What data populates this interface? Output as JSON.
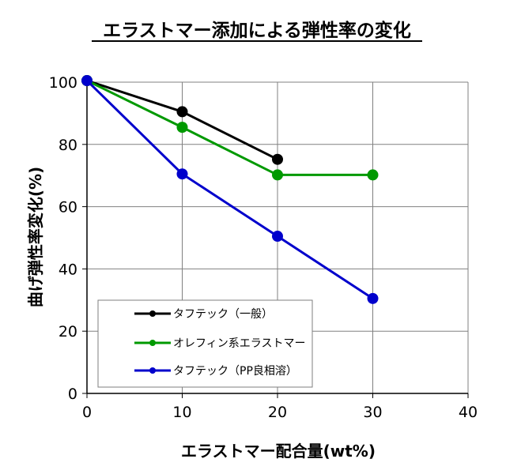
{
  "chart_data": {
    "type": "line",
    "title": "エラストマー添加による弾性率の変化",
    "xlabel": "エラストマー配合量(wt%)",
    "ylabel": "曲げ弾性率変化(%)",
    "xlim": [
      0,
      40
    ],
    "ylim": [
      0,
      100
    ],
    "x_ticks": [
      "0",
      "10",
      "20",
      "30",
      "40"
    ],
    "y_ticks": [
      "0",
      "20",
      "40",
      "60",
      "80",
      "100"
    ],
    "grid": true,
    "legend_position": "bottom-left",
    "series": [
      {
        "name": "タフテック（一般）",
        "color": "#000000",
        "points": [
          [
            0,
            100.5
          ],
          [
            10,
            90.5
          ],
          [
            20,
            75.2
          ]
        ]
      },
      {
        "name": "オレフィン系エラストマー",
        "color": "#009900",
        "points": [
          [
            0,
            100.5
          ],
          [
            10,
            85.5
          ],
          [
            20,
            70.2
          ],
          [
            30,
            70.2
          ]
        ]
      },
      {
        "name": "タフテック（PP良相溶）",
        "color": "#0000CC",
        "points": [
          [
            0,
            100.5
          ],
          [
            10,
            70.5
          ],
          [
            20,
            50.5
          ],
          [
            30,
            30.5
          ]
        ]
      }
    ]
  }
}
